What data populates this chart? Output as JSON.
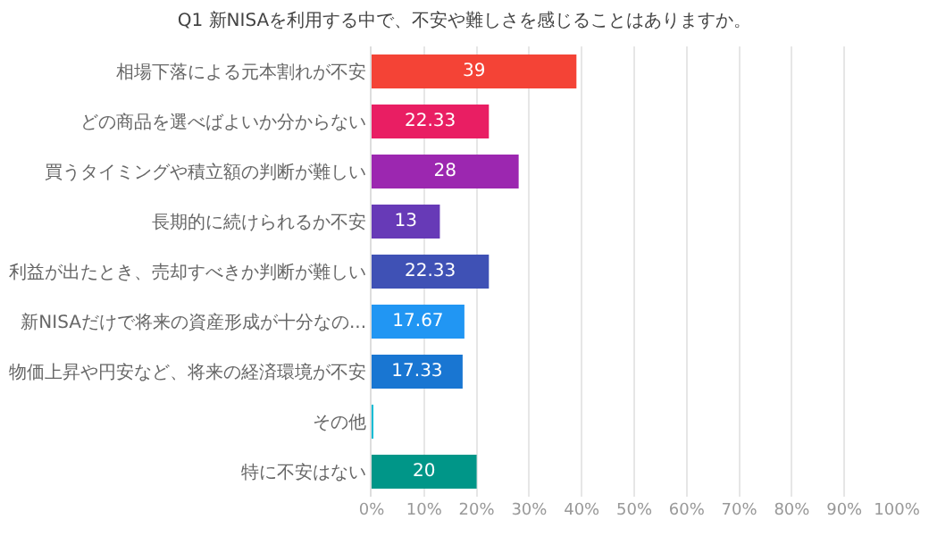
{
  "chart_data": {
    "type": "bar",
    "orientation": "horizontal",
    "title": "Q1 新NISAを利用する中で、不安や難しさを感じることはありますか。",
    "categories": [
      "相場下落による元本割れが不安",
      "どの商品を選べばよいか分からない",
      "買うタイミングや積立額の判断が難しい",
      "長期的に続けられるか不安",
      "利益が出たとき、売却すべきか判断が難しい",
      "新NISAだけで将来の資産形成が十分なの...",
      "物価上昇や円安など、将来の経済環境が不安",
      "その他",
      "特に不安はない"
    ],
    "values": [
      39,
      22.33,
      28,
      13,
      22.33,
      17.67,
      17.33,
      0.3,
      20
    ],
    "colors": [
      "#f44336",
      "#e91e63",
      "#9c27b0",
      "#673ab7",
      "#3f51b5",
      "#2196f3",
      "#1976d2",
      "#00bcd4",
      "#009688"
    ],
    "value_labels": [
      "39",
      "22.33",
      "28",
      "13",
      "22.33",
      "17.67",
      "17.33",
      null,
      "20"
    ],
    "xlim": [
      0,
      100
    ],
    "xticks": [
      {
        "value": 0,
        "label": "0%"
      },
      {
        "value": 10,
        "label": "10%"
      },
      {
        "value": 20,
        "label": "20%"
      },
      {
        "value": 30,
        "label": "30%"
      },
      {
        "value": 40,
        "label": "40%"
      },
      {
        "value": 50,
        "label": "50%"
      },
      {
        "value": 60,
        "label": "60%"
      },
      {
        "value": 70,
        "label": "70%"
      },
      {
        "value": 80,
        "label": "80%"
      },
      {
        "value": 90,
        "label": "90%"
      },
      {
        "value": 100,
        "label": "100%"
      }
    ],
    "grid": "x"
  }
}
